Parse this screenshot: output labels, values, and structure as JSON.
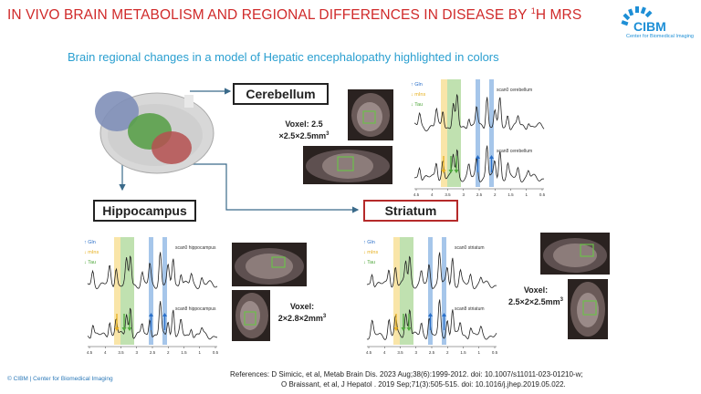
{
  "slide": {
    "title_main": "IN VIVO BRAIN METABOLISM AND REGIONAL DIFFERENCES IN DISEASE BY ",
    "title_sup": "1",
    "title_end": "H MRS",
    "subtitle": "Brain regional changes in a model of Hepatic encephalopathy highlighted in colors"
  },
  "logo": {
    "word": "CIBM",
    "subtitle": "Center for Biomedical Imaging"
  },
  "colors": {
    "title": "#d02a2a",
    "accent_blue": "#2a9fd0",
    "gln": "#2a6fc8",
    "mins": "#e6b020",
    "tau": "#4fa83c"
  },
  "regions": {
    "cerebellum": {
      "label": "Cerebellum",
      "voxel_line1": "Voxel: 2.5",
      "voxel_line2": "×2.5×2.5mm",
      "voxel_sup": "3",
      "scan0": "scan0 cerebellum",
      "scan8": "scan8 cerebellum"
    },
    "hippocampus": {
      "label": "Hippocampus",
      "voxel_line1": "Voxel:",
      "voxel_line2": "2×2.8×2mm",
      "voxel_sup": "3",
      "scan0": "scan0 hippocampus",
      "scan8": "scan8 hippocampus"
    },
    "striatum": {
      "label": "Striatum",
      "voxel_line1": "Voxel:",
      "voxel_line2": "2.5×2×2.5mm",
      "voxel_sup": "3",
      "scan0": "scan0 striatum",
      "scan8": "scan8 striatum"
    }
  },
  "legend": {
    "gln": "Gln",
    "mins": "mIns",
    "tau": "Tau"
  },
  "axis_ticks": [
    "4.5",
    "4",
    "3.5",
    "3",
    "2.5",
    "2",
    "1.5",
    "1",
    "0.5"
  ],
  "footer": {
    "copyright": "© CIBM | Center for Biomedical Imaging",
    "refs_line1": "References:     D Simicic, et al, Metab Brain Dis. 2023 Aug;38(6):1999-2012. doi: 10.1007/s11011-023-01210-w;",
    "refs_line2": "O Braissant, et al, J Hepatol . 2019 Sep;71(3):505-515. doi: 10.1016/j.jhep.2019.05.022."
  }
}
